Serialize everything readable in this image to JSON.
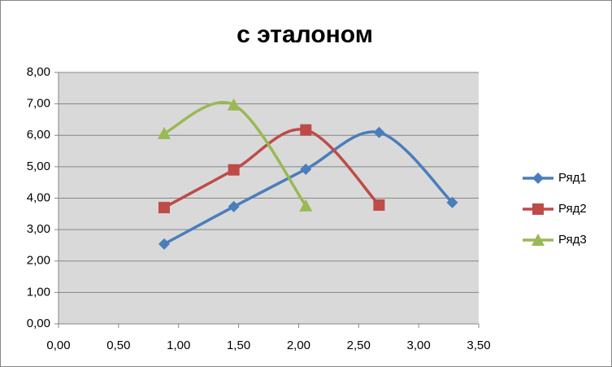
{
  "chart_data": {
    "type": "scatter",
    "title": "с эталоном",
    "smooth": true,
    "grid": true,
    "xlim": [
      0,
      3.5
    ],
    "xticks": [
      {
        "value": 0,
        "label": "0,00"
      },
      {
        "value": 0.5,
        "label": "0,50"
      },
      {
        "value": 1,
        "label": "1,00"
      },
      {
        "value": 1.5,
        "label": "1,50"
      },
      {
        "value": 2,
        "label": "2,00"
      },
      {
        "value": 2.5,
        "label": "2,50"
      },
      {
        "value": 3,
        "label": "3,00"
      },
      {
        "value": 3.5,
        "label": "3,50"
      }
    ],
    "ylim": [
      0,
      8
    ],
    "yticks": [
      {
        "value": 0,
        "label": "0,00"
      },
      {
        "value": 1,
        "label": "1,00"
      },
      {
        "value": 2,
        "label": "2,00"
      },
      {
        "value": 3,
        "label": "3,00"
      },
      {
        "value": 4,
        "label": "4,00"
      },
      {
        "value": 5,
        "label": "5,00"
      },
      {
        "value": 6,
        "label": "6,00"
      },
      {
        "value": 7,
        "label": "7,00"
      },
      {
        "value": 8,
        "label": "8,00"
      }
    ],
    "legend": "right",
    "series": [
      {
        "name": "Ряд1",
        "color": "#4a7ebb",
        "marker": "diamond",
        "x": [
          0.88,
          1.46,
          2.06,
          2.67,
          3.28
        ],
        "values": [
          2.54,
          3.73,
          4.92,
          6.09,
          3.86
        ]
      },
      {
        "name": "Ряд2",
        "color": "#be4b48",
        "marker": "square",
        "x": [
          0.88,
          1.46,
          2.06,
          2.67
        ],
        "values": [
          3.7,
          4.9,
          6.17,
          3.78
        ]
      },
      {
        "name": "Ряд3",
        "color": "#98b954",
        "marker": "triangle",
        "x": [
          0.88,
          1.46,
          2.06
        ],
        "values": [
          6.06,
          6.97,
          3.76
        ]
      }
    ]
  }
}
